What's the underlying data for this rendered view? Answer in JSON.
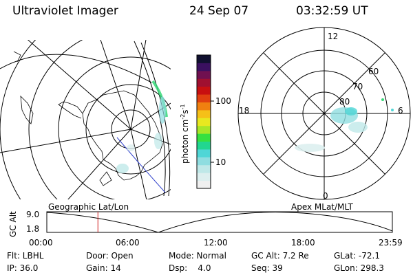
{
  "header": {
    "instrument": "Ultraviolet Imager",
    "date": "24 Sep 07",
    "time": "03:32:59 UT"
  },
  "colorbar": {
    "unit_label": "photon cm",
    "tick_top": "100",
    "tick_bottom": "10",
    "colors": [
      "#f0f0f0",
      "#ddefef",
      "#bfe8e8",
      "#8fdde0",
      "#4fd6d6",
      "#22d690",
      "#36e040",
      "#a8e628",
      "#e8e820",
      "#f5c018",
      "#f08010",
      "#e04010",
      "#c81010",
      "#a01030",
      "#701050",
      "#3a1060",
      "#101030"
    ]
  },
  "polar_plot": {
    "labels": {
      "top": "12",
      "bottom": "0",
      "left": "18",
      "right": "6",
      "lat60": "60",
      "lat70": "70",
      "lat80": "80"
    }
  },
  "timeline": {
    "left_label": "Geographic Lat/Lon",
    "right_label": "Apex MLat/MLT",
    "axis_label": "GC Alt",
    "y_top": "9.0",
    "y_bottom": "1.8",
    "x_ticks": [
      "00:00",
      "06:00",
      "12:00",
      "18:00",
      "23:59"
    ],
    "marker_time_hours": 3.55
  },
  "info": {
    "flt": "Flt: LBHL",
    "ip": "IP: 36.0",
    "door": "Door: Open",
    "gain": "Gain: 14",
    "mode": "Mode: Normal",
    "dsp": "Dsp:    4.0",
    "gc_alt": "GC Alt: 7.2 Re",
    "seq": "Seq: 39",
    "glat": "GLat: -72.1",
    "glon": "GLon: 298.3"
  }
}
